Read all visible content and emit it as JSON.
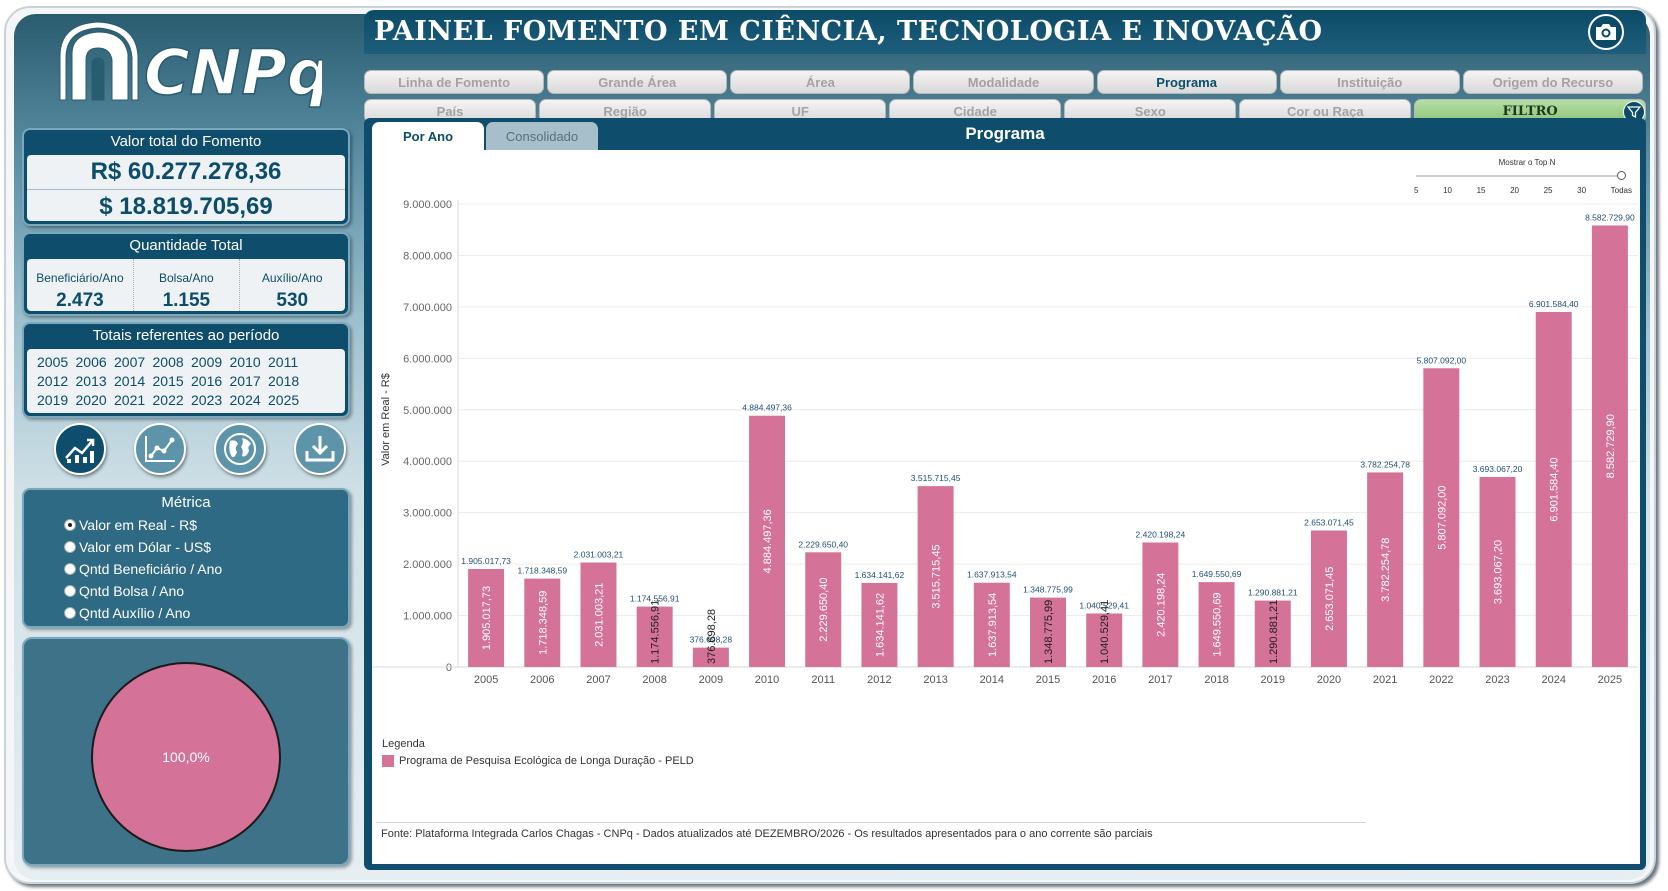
{
  "brand": {
    "logo_text": "CNPq"
  },
  "header": {
    "title": "PAINEL FOMENTO EM CIÊNCIA, TECNOLOGIA E INOVAÇÃO",
    "camera_icon": "camera-icon"
  },
  "filter_tabs_row1": [
    {
      "label": "Linha de Fomento",
      "active": false
    },
    {
      "label": "Grande Área",
      "active": false
    },
    {
      "label": "Área",
      "active": false
    },
    {
      "label": "Modalidade",
      "active": false
    },
    {
      "label": "Programa",
      "active": true
    },
    {
      "label": "Instituição",
      "active": false
    },
    {
      "label": "Origem do Recurso",
      "active": false
    }
  ],
  "filter_tabs_row2": [
    {
      "label": "País"
    },
    {
      "label": "Região"
    },
    {
      "label": "UF"
    },
    {
      "label": "Cidade"
    },
    {
      "label": "Sexo"
    },
    {
      "label": "Cor ou Raça"
    }
  ],
  "filter_button": {
    "label": "FILTRO",
    "icon": "funnel-icon",
    "color": "#9fd08b"
  },
  "totals": {
    "title": "Valor total do Fomento",
    "brl": "R$ 60.277.278,36",
    "usd": "$ 18.819.705,69"
  },
  "quantity": {
    "title": "Quantidade Total",
    "items": [
      {
        "label": "Beneficiário/Ano",
        "value": "2.473"
      },
      {
        "label": "Bolsa/Ano",
        "value": "1.155"
      },
      {
        "label": "Auxílio/Ano",
        "value": "530"
      }
    ]
  },
  "period": {
    "title": "Totais referentes ao período",
    "years": [
      "2005",
      "2006",
      "2007",
      "2008",
      "2009",
      "2010",
      "2011",
      "2012",
      "2013",
      "2014",
      "2015",
      "2016",
      "2017",
      "2018",
      "2019",
      "2020",
      "2021",
      "2022",
      "2023",
      "2024",
      "2025"
    ]
  },
  "view_icons": [
    "trend-chart-icon",
    "line-chart-icon",
    "globe-icon",
    "download-icon"
  ],
  "metric": {
    "title": "Métrica",
    "options": [
      {
        "label": "Valor em Real - R$",
        "selected": true
      },
      {
        "label": "Valor em Dólar - US$",
        "selected": false
      },
      {
        "label": "Qntd Beneficiário / Ano",
        "selected": false
      },
      {
        "label": "Qntd Bolsa / Ano",
        "selected": false
      },
      {
        "label": "Qntd Auxílio / Ano",
        "selected": false
      }
    ]
  },
  "pie": {
    "label": "100,0%",
    "value": 100,
    "color": "#d47297"
  },
  "view_tabs": [
    {
      "label": "Por Ano",
      "active": true
    },
    {
      "label": "Consolidado",
      "active": false
    }
  ],
  "main": {
    "title": "Programa"
  },
  "topn": {
    "title": "Mostrar o Top N",
    "ticks": [
      "5",
      "10",
      "15",
      "20",
      "25",
      "30",
      "Todas"
    ],
    "selected": "Todas"
  },
  "chart_data": {
    "type": "bar",
    "title": "Programa",
    "xlabel": "",
    "ylabel": "Valor em Real - R$",
    "ylim": [
      0,
      9000000
    ],
    "yticks": [
      0,
      1000000,
      2000000,
      3000000,
      4000000,
      5000000,
      6000000,
      7000000,
      8000000,
      9000000
    ],
    "ytick_labels": [
      "0",
      "1.000.000",
      "2.000.000",
      "3.000.000",
      "4.000.000",
      "5.000.000",
      "6.000.000",
      "7.000.000",
      "8.000.000",
      "9.000.000"
    ],
    "categories": [
      "2005",
      "2006",
      "2007",
      "2008",
      "2009",
      "2010",
      "2011",
      "2012",
      "2013",
      "2014",
      "2015",
      "2016",
      "2017",
      "2018",
      "2019",
      "2020",
      "2021",
      "2022",
      "2023",
      "2024",
      "2025"
    ],
    "series": [
      {
        "name": "Programa de Pesquisa Ecológica de Longa Duração - PELD",
        "color": "#d47297",
        "values": [
          1905017.73,
          1718348.59,
          2031003.21,
          1174556.91,
          376698.28,
          4884497.36,
          2229650.4,
          1634141.62,
          3515715.45,
          1637913.54,
          1348775.99,
          1040529.41,
          2420198.24,
          1649550.69,
          1290881.21,
          2653071.45,
          3782254.78,
          5807092.0,
          3693067.2,
          6901584.4,
          8582729.9
        ],
        "labels": [
          "1.905.017,73",
          "1.718.348,59",
          "2.031.003,21",
          "1.174.556,91",
          "376.698,28",
          "4.884.497,36",
          "2.229.650,40",
          "1.634.141,62",
          "3.515.715,45",
          "1.637.913,54",
          "1.348.775,99",
          "1.040.529,41",
          "2.420.198,24",
          "1.649.550,69",
          "1.290.881,21",
          "2.653.071,45",
          "3.782.254,78",
          "5.807.092,00",
          "3.693.067,20",
          "6.901.584,40",
          "8.582.729,90"
        ]
      }
    ],
    "grid": true,
    "legend": {
      "title": "Legenda",
      "placement": "bottom-left"
    }
  },
  "footer": {
    "text": "Fonte: Plataforma Integrada Carlos Chagas - CNPq - Dados atualizados até DEZEMBRO/2026 - Os resultados apresentados para o ano corrente são parciais"
  }
}
